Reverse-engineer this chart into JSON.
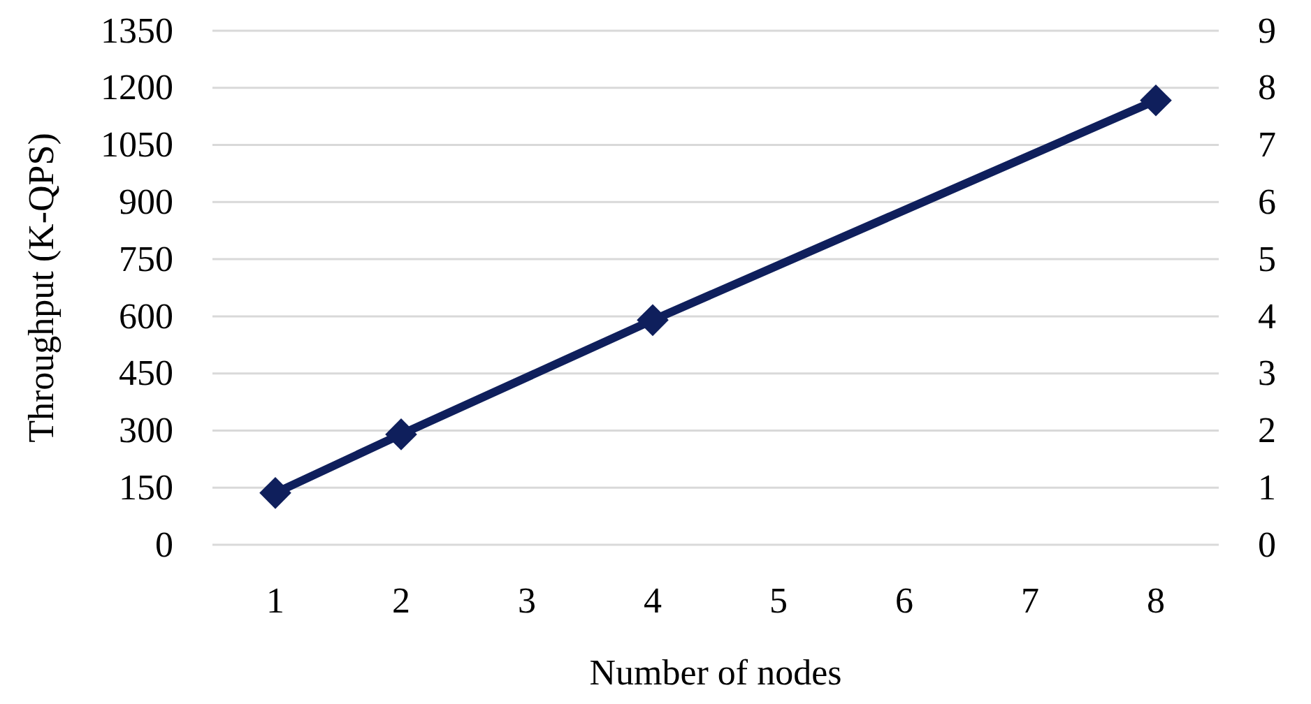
{
  "chart_data": {
    "type": "line",
    "xlabel": "Number of nodes",
    "ylabel": "Throughput (K-QPS)",
    "x": [
      1,
      2,
      4,
      8
    ],
    "series": [
      {
        "color": "#0f1f5c",
        "values": [
          136,
          290,
          590,
          1167
        ]
      }
    ],
    "xlim": [
      0.5,
      8.5
    ],
    "xticks": [
      1,
      2,
      3,
      4,
      5,
      6,
      7,
      8
    ],
    "ylim": [
      0,
      1350
    ],
    "yticks": [
      0,
      150,
      300,
      450,
      600,
      750,
      900,
      1050,
      1200,
      1350
    ],
    "y2lim": [
      0,
      9
    ],
    "y2ticks": [
      0,
      1,
      2,
      3,
      4,
      5,
      6,
      7,
      8,
      9
    ],
    "grid": "y",
    "marker": "diamond",
    "line_style": "solid"
  }
}
